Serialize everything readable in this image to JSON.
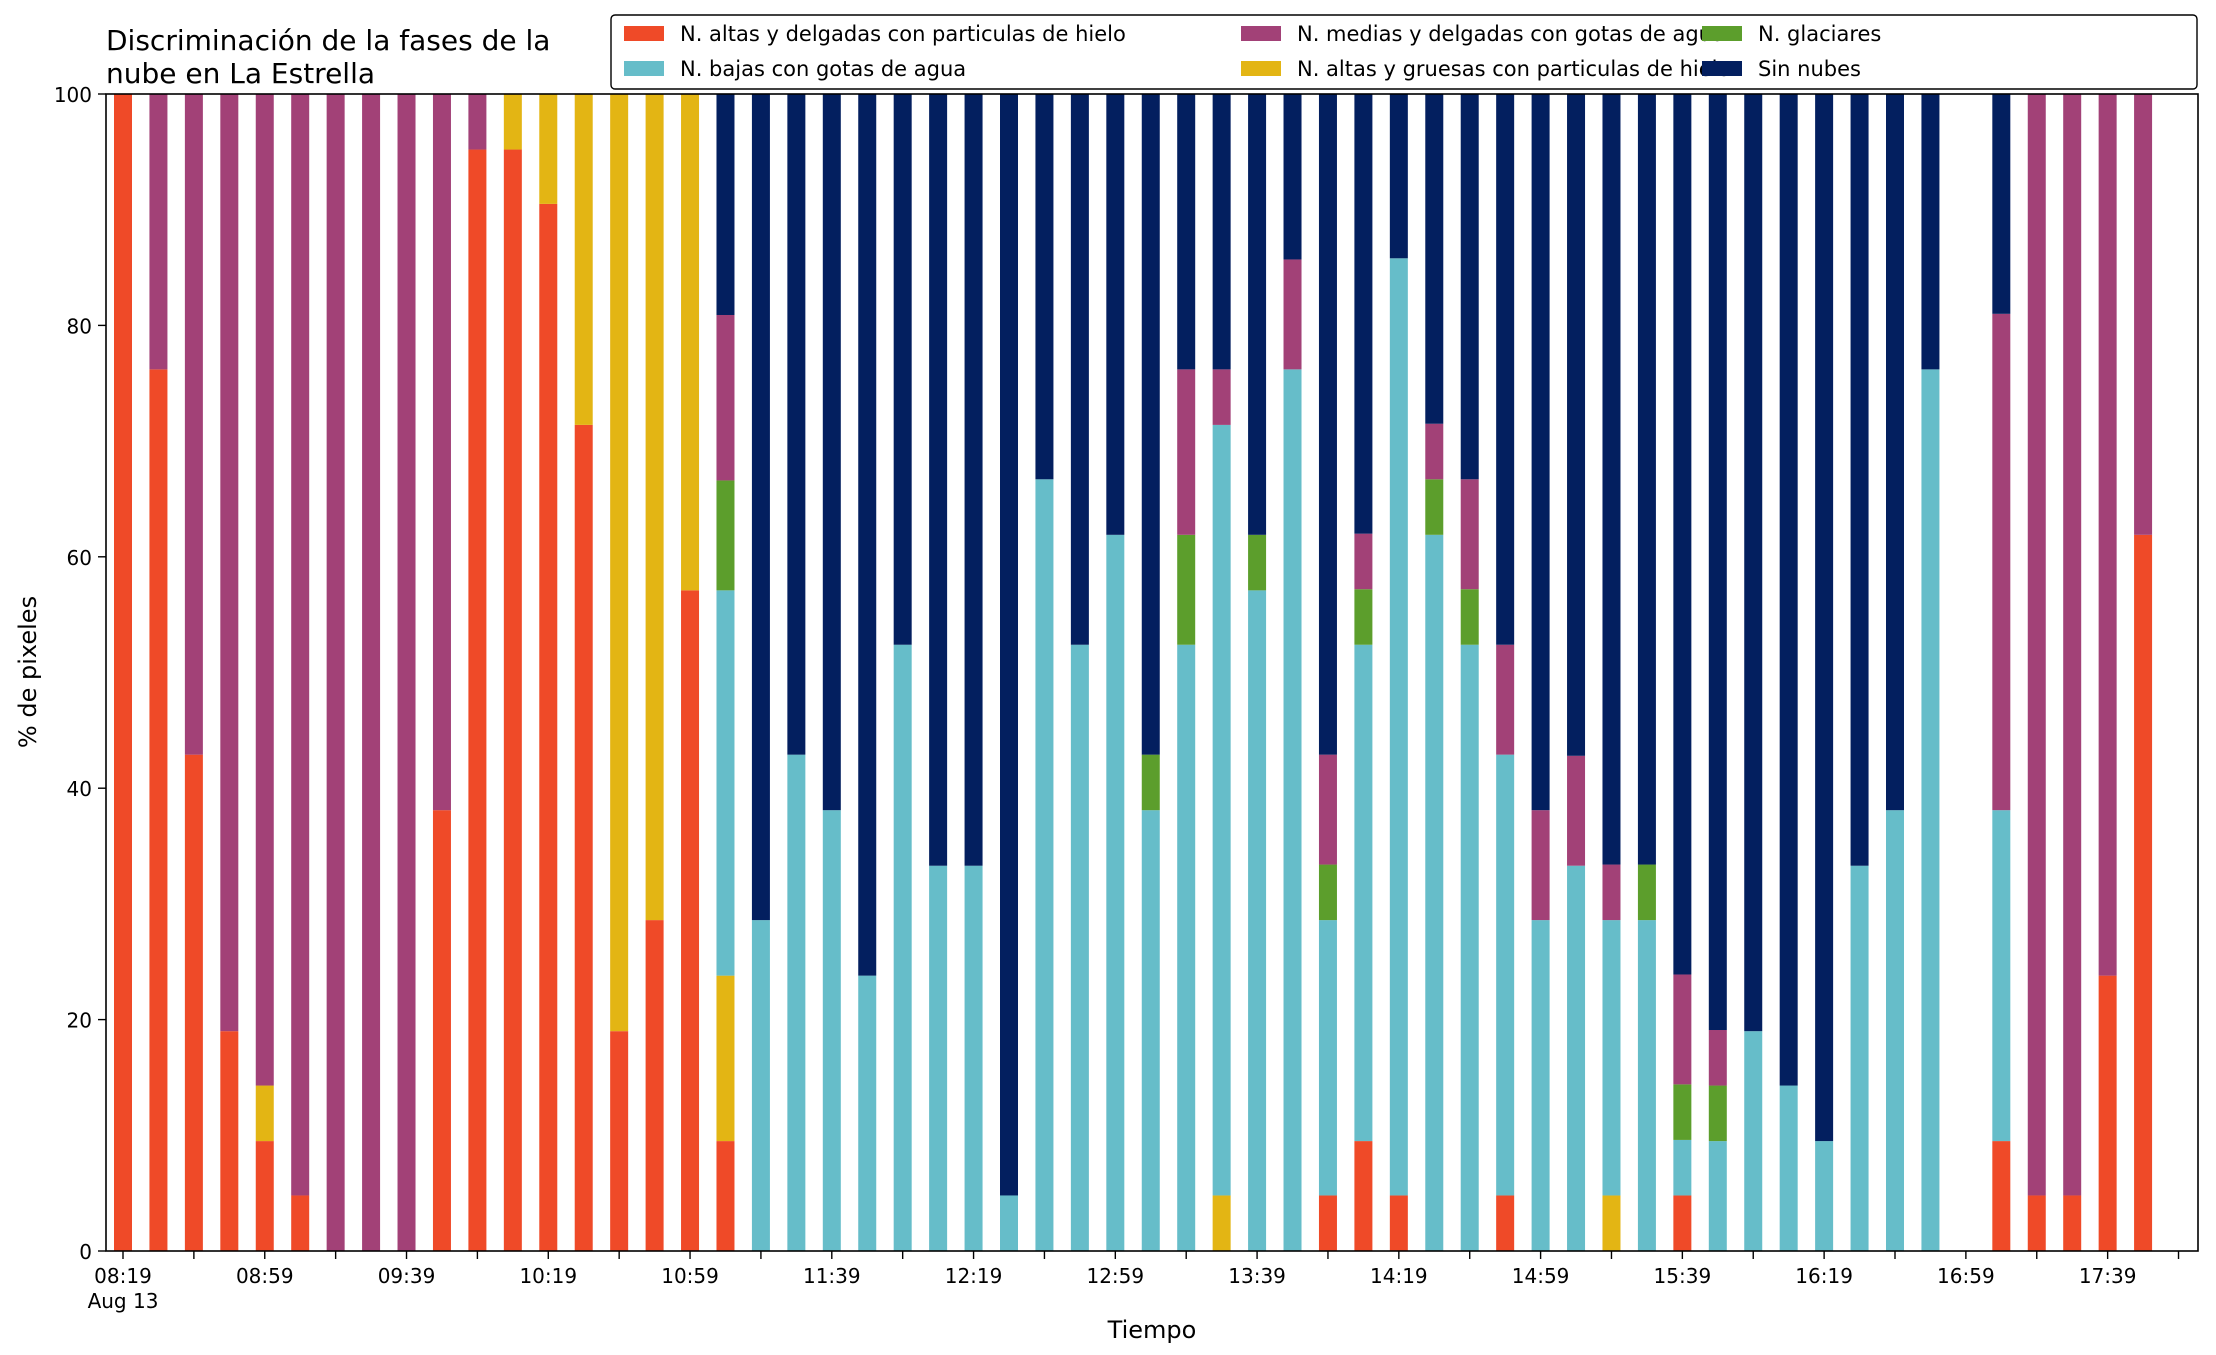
{
  "chart_data": {
    "type": "bar",
    "stacked": true,
    "title_lines": [
      "Discriminación de la fases de la",
      "nube en La Estrella"
    ],
    "xlabel": "Tiempo",
    "ylabel": "% de pixeles",
    "ylim": [
      0,
      100
    ],
    "yticks": [
      "0",
      "20",
      "40",
      "60",
      "80",
      "100"
    ],
    "xtick_labels": [
      "08:19",
      "08:59",
      "09:39",
      "10:19",
      "10:59",
      "11:39",
      "12:19",
      "12:59",
      "13:39",
      "14:19",
      "14:59",
      "15:39",
      "16:19",
      "16:59",
      "17:39"
    ],
    "xtick_sublabel": "Aug 13",
    "grid": false,
    "legend_position": "top-right",
    "series": [
      {
        "name": "N. altas y delgadas con particulas de hielo",
        "color": "#ef4a28"
      },
      {
        "name": "N. altas y gruesas con particulas de hielo",
        "color": "#e3b514"
      },
      {
        "name": "N. bajas con gotas de agua",
        "color": "#66bdc9"
      },
      {
        "name": "N. glaciares",
        "color": "#5c9e2c"
      },
      {
        "name": "N. medias y delgadas con gotas de agua",
        "color": "#a24177"
      },
      {
        "name": "Sin nubes",
        "color": "#031f5f"
      }
    ],
    "legend_order": [
      0,
      2,
      4,
      1,
      3,
      5
    ],
    "bars": [
      {
        "time": "08:19",
        "values": [
          100,
          0,
          0,
          0,
          0,
          0
        ]
      },
      {
        "time": "08:29",
        "values": [
          76.2,
          0,
          0,
          0,
          23.8,
          0
        ]
      },
      {
        "time": "08:39",
        "values": [
          42.9,
          0,
          0,
          0,
          57.1,
          0
        ]
      },
      {
        "time": "08:49",
        "values": [
          19,
          0,
          0,
          0,
          81,
          0
        ]
      },
      {
        "time": "08:59",
        "values": [
          9.5,
          4.8,
          0,
          0,
          85.7,
          0
        ]
      },
      {
        "time": "09:09",
        "values": [
          4.8,
          0,
          0,
          0,
          95.2,
          0
        ]
      },
      {
        "time": "09:19",
        "values": [
          0,
          0,
          0,
          0,
          100,
          0
        ]
      },
      {
        "time": "09:29",
        "values": [
          0,
          0,
          0,
          0,
          100,
          0
        ]
      },
      {
        "time": "09:39",
        "values": [
          0,
          0,
          0,
          0,
          100,
          0
        ]
      },
      {
        "time": "09:49",
        "values": [
          38.1,
          0,
          0,
          0,
          61.9,
          0
        ]
      },
      {
        "time": "09:59",
        "values": [
          95.2,
          0,
          0,
          0,
          4.8,
          0
        ]
      },
      {
        "time": "10:09",
        "values": [
          95.2,
          4.8,
          0,
          0,
          0,
          0
        ]
      },
      {
        "time": "10:19",
        "values": [
          90.5,
          9.5,
          0,
          0,
          0,
          0
        ]
      },
      {
        "time": "10:29",
        "values": [
          71.4,
          28.6,
          0,
          0,
          0,
          0
        ]
      },
      {
        "time": "10:39",
        "values": [
          19,
          81,
          0,
          0,
          0,
          0
        ]
      },
      {
        "time": "10:49",
        "values": [
          28.6,
          71.4,
          0,
          0,
          0,
          0
        ]
      },
      {
        "time": "10:59",
        "values": [
          57.1,
          42.9,
          0,
          0,
          0,
          0
        ]
      },
      {
        "time": "11:09",
        "values": [
          9.5,
          14.3,
          33.3,
          9.5,
          14.3,
          19.1
        ]
      },
      {
        "time": "11:19",
        "values": [
          0,
          0,
          28.6,
          0,
          0,
          71.4
        ]
      },
      {
        "time": "11:29",
        "values": [
          0,
          0,
          42.9,
          0,
          0,
          57.1
        ]
      },
      {
        "time": "11:39",
        "values": [
          0,
          0,
          38.1,
          0,
          0,
          61.9
        ]
      },
      {
        "time": "11:49",
        "values": [
          0,
          0,
          23.8,
          0,
          0,
          76.2
        ]
      },
      {
        "time": "11:59",
        "values": [
          0,
          0,
          52.4,
          0,
          0,
          47.6
        ]
      },
      {
        "time": "12:09",
        "values": [
          0,
          0,
          33.3,
          0,
          0,
          66.7
        ]
      },
      {
        "time": "12:19",
        "values": [
          0,
          0,
          33.3,
          0,
          0,
          66.7
        ]
      },
      {
        "time": "12:29",
        "values": [
          0,
          0,
          4.8,
          0,
          0,
          95.2
        ]
      },
      {
        "time": "12:39",
        "values": [
          0,
          0,
          66.7,
          0,
          0,
          33.3
        ]
      },
      {
        "time": "12:49",
        "values": [
          0,
          0,
          52.4,
          0,
          0,
          47.6
        ]
      },
      {
        "time": "12:59",
        "values": [
          0,
          0,
          61.9,
          0,
          0,
          38.1
        ]
      },
      {
        "time": "13:09",
        "values": [
          0,
          0,
          38.1,
          4.8,
          0,
          57.1
        ]
      },
      {
        "time": "13:19",
        "values": [
          0,
          0,
          52.4,
          9.5,
          14.3,
          23.8
        ]
      },
      {
        "time": "13:29",
        "values": [
          0,
          4.8,
          66.6,
          0,
          4.8,
          23.8
        ]
      },
      {
        "time": "13:39",
        "values": [
          0,
          0,
          57.1,
          4.8,
          0,
          38.1
        ]
      },
      {
        "time": "13:49",
        "values": [
          0,
          0,
          76.2,
          0,
          9.5,
          14.3
        ]
      },
      {
        "time": "13:59",
        "values": [
          4.8,
          0,
          23.8,
          4.8,
          9.5,
          57.1
        ]
      },
      {
        "time": "14:09",
        "values": [
          9.5,
          0,
          42.9,
          4.8,
          4.8,
          38
        ]
      },
      {
        "time": "14:19",
        "values": [
          4.8,
          0,
          81,
          0,
          0,
          14.2
        ]
      },
      {
        "time": "14:29",
        "values": [
          0,
          0,
          61.9,
          4.8,
          4.8,
          28.5
        ]
      },
      {
        "time": "14:39",
        "values": [
          0,
          0,
          52.4,
          4.8,
          9.5,
          33.3
        ]
      },
      {
        "time": "14:49",
        "values": [
          4.8,
          0,
          38.1,
          0,
          9.5,
          47.6
        ]
      },
      {
        "time": "14:59",
        "values": [
          0,
          0,
          28.6,
          0,
          9.5,
          61.9
        ]
      },
      {
        "time": "15:09",
        "values": [
          0,
          0,
          33.3,
          0,
          9.5,
          57.2
        ]
      },
      {
        "time": "15:19",
        "values": [
          0,
          4.8,
          23.8,
          0,
          4.8,
          66.6
        ]
      },
      {
        "time": "15:29",
        "values": [
          0,
          0,
          28.6,
          4.8,
          0,
          66.6
        ]
      },
      {
        "time": "15:39",
        "values": [
          4.8,
          0,
          4.8,
          4.8,
          9.5,
          76.1
        ]
      },
      {
        "time": "15:49",
        "values": [
          0,
          0,
          9.5,
          4.8,
          4.8,
          80.9
        ]
      },
      {
        "time": "15:59",
        "values": [
          0,
          0,
          19,
          0,
          0,
          81
        ]
      },
      {
        "time": "16:09",
        "values": [
          0,
          0,
          14.3,
          0,
          0,
          85.7
        ]
      },
      {
        "time": "16:19",
        "values": [
          0,
          0,
          9.5,
          0,
          0,
          90.5
        ]
      },
      {
        "time": "16:29",
        "values": [
          0,
          0,
          33.3,
          0,
          0,
          66.7
        ]
      },
      {
        "time": "16:39",
        "values": [
          0,
          0,
          38.1,
          0,
          0,
          61.9
        ]
      },
      {
        "time": "16:49",
        "values": [
          0,
          0,
          76.2,
          0,
          0,
          23.8
        ]
      },
      {
        "time": "17:09",
        "values": [
          9.5,
          0,
          28.6,
          0,
          42.9,
          19
        ]
      },
      {
        "time": "17:19",
        "values": [
          4.8,
          0,
          0,
          0,
          95.2,
          0
        ]
      },
      {
        "time": "17:29",
        "values": [
          4.8,
          0,
          0,
          0,
          95.2,
          0
        ]
      },
      {
        "time": "17:39",
        "values": [
          23.8,
          0,
          0,
          0,
          76.2,
          0
        ]
      },
      {
        "time": "17:49",
        "values": [
          61.9,
          0,
          0,
          0,
          38.1,
          0
        ]
      }
    ]
  }
}
